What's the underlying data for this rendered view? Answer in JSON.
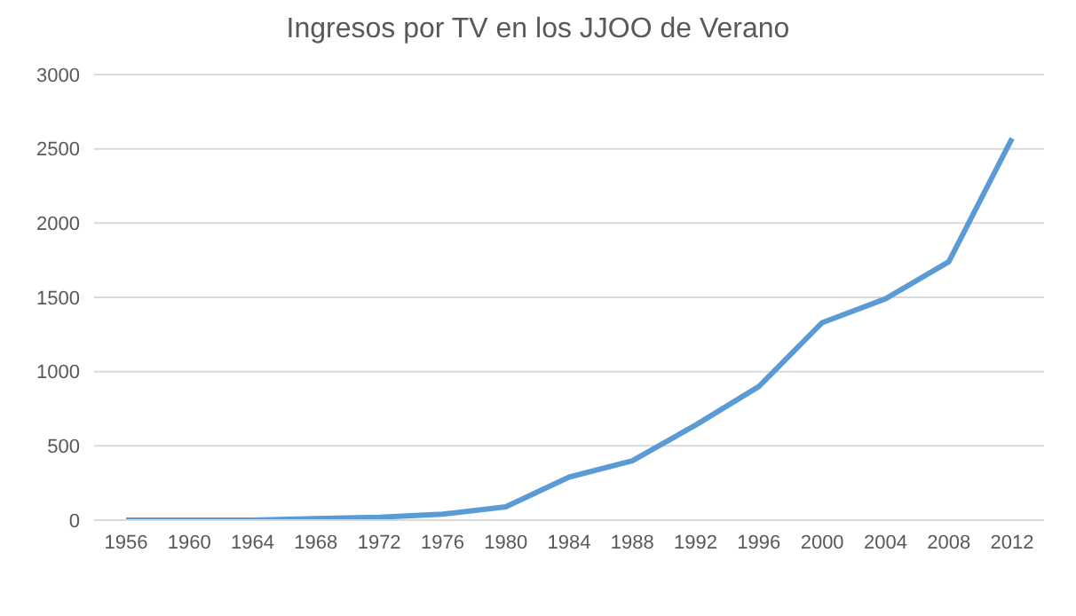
{
  "chart_data": {
    "type": "line",
    "title": "Ingresos por TV en los JJOO de Verano",
    "categories": [
      "1956",
      "1960",
      "1964",
      "1968",
      "1972",
      "1976",
      "1980",
      "1984",
      "1988",
      "1992",
      "1996",
      "2000",
      "2004",
      "2008",
      "2012"
    ],
    "series": [
      {
        "color": "#5b9bd5",
        "values": [
          0,
          0,
          0,
          10,
          20,
          40,
          90,
          290,
          400,
          640,
          900,
          1330,
          1490,
          1740,
          2570
        ]
      }
    ],
    "ylim": [
      0,
      3000
    ],
    "yticks": [
      0,
      500,
      1000,
      1500,
      2000,
      2500,
      3000
    ],
    "grid": "y",
    "legend": false,
    "marker": "none",
    "line_style": "solid"
  }
}
